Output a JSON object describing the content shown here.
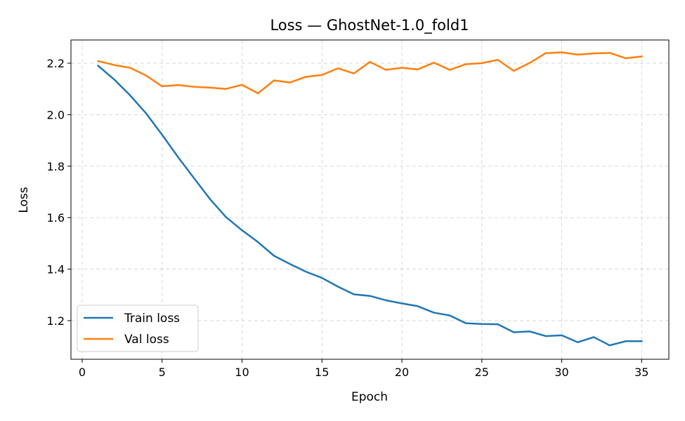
{
  "chart_data": {
    "type": "line",
    "title": "Loss — GhostNet-1.0_fold1",
    "xlabel": "Epoch",
    "ylabel": "Loss",
    "xlim": [
      -0.7,
      36.7
    ],
    "ylim": [
      1.05,
      2.29
    ],
    "xticks": [
      0,
      5,
      10,
      15,
      20,
      25,
      30,
      35
    ],
    "yticks": [
      1.2,
      1.4,
      1.6,
      1.8,
      2.0,
      2.2
    ],
    "xtick_labels": [
      "0",
      "5",
      "10",
      "15",
      "20",
      "25",
      "30",
      "35"
    ],
    "ytick_labels": [
      "1.2",
      "1.4",
      "1.6",
      "1.8",
      "2.0",
      "2.2"
    ],
    "grid": true,
    "legend_position": "lower-left",
    "x": [
      1,
      2,
      3,
      4,
      5,
      6,
      7,
      8,
      9,
      10,
      11,
      12,
      13,
      14,
      15,
      16,
      17,
      18,
      19,
      20,
      21,
      22,
      23,
      24,
      25,
      26,
      27,
      28,
      29,
      30,
      31,
      32,
      33,
      34,
      35
    ],
    "series": [
      {
        "name": "Train loss",
        "color": "#1f77b4",
        "values": [
          2.19,
          2.137,
          2.075,
          2.005,
          1.922,
          1.835,
          1.753,
          1.672,
          1.602,
          1.551,
          1.505,
          1.452,
          1.42,
          1.39,
          1.366,
          1.332,
          1.302,
          1.296,
          1.279,
          1.267,
          1.256,
          1.231,
          1.22,
          1.19,
          1.187,
          1.186,
          1.155,
          1.158,
          1.14,
          1.143,
          1.116,
          1.136,
          1.104,
          1.12,
          1.12
        ]
      },
      {
        "name": "Val loss",
        "color": "#ff7f0e",
        "values": [
          2.208,
          2.193,
          2.182,
          2.152,
          2.11,
          2.115,
          2.108,
          2.105,
          2.1,
          2.116,
          2.083,
          2.133,
          2.125,
          2.147,
          2.154,
          2.18,
          2.16,
          2.205,
          2.174,
          2.182,
          2.176,
          2.202,
          2.174,
          2.196,
          2.2,
          2.213,
          2.17,
          2.201,
          2.239,
          2.242,
          2.233,
          2.238,
          2.24,
          2.219,
          2.226
        ]
      }
    ]
  }
}
